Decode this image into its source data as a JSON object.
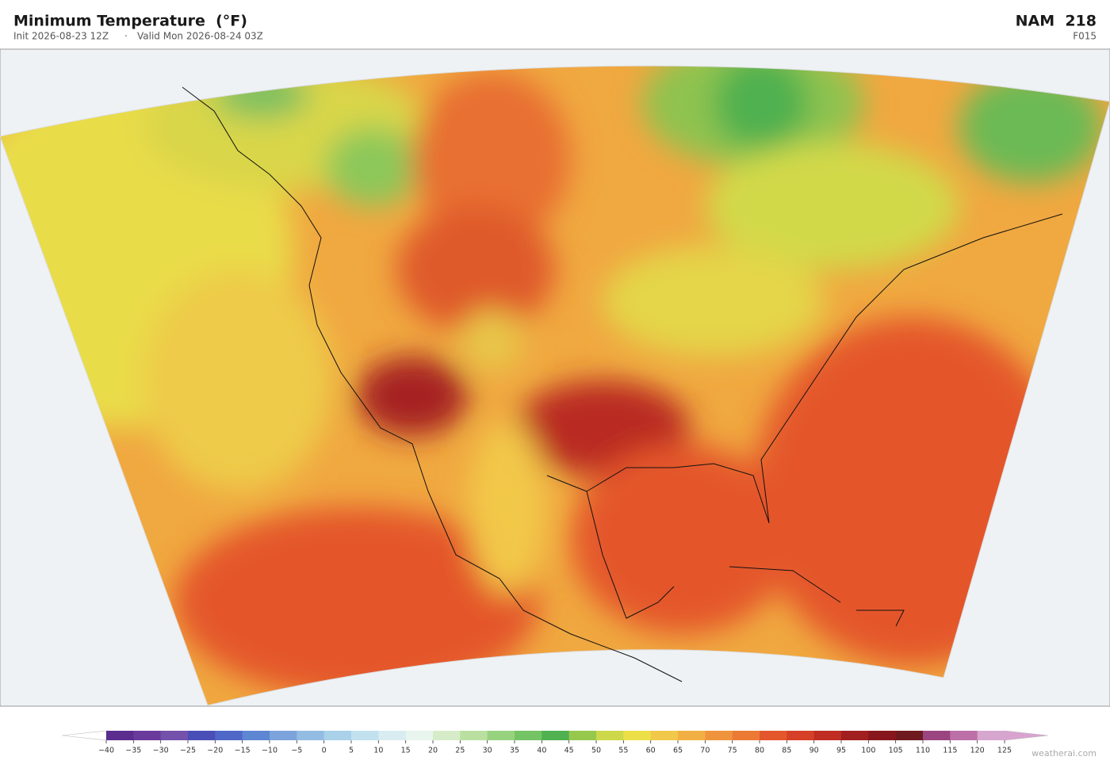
{
  "header": {
    "title": "Minimum Temperature  (°F)",
    "init": "Init 2026-08-23 12Z",
    "valid": "Valid Mon 2026-08-24 03Z",
    "model": "NAM  218",
    "forecast_hour": "F015"
  },
  "colorbar": {
    "ticks": [
      {
        "value": -40,
        "label": "−40"
      },
      {
        "value": -35,
        "label": "−35"
      },
      {
        "value": -30,
        "label": "−30"
      },
      {
        "value": -25,
        "label": "−25"
      },
      {
        "value": -20,
        "label": "−20"
      },
      {
        "value": -15,
        "label": "−15"
      },
      {
        "value": -10,
        "label": "−10"
      },
      {
        "value": -5,
        "label": "−5"
      },
      0,
      5,
      10,
      15,
      20,
      25,
      30,
      35,
      40,
      45,
      50,
      55,
      60,
      65,
      70,
      75,
      80,
      85,
      90,
      95,
      100,
      105,
      110,
      115,
      120,
      125
    ],
    "colors": [
      "#5a2d8e",
      "#6a3a9c",
      "#7451ab",
      "#4a4fb8",
      "#4f68c8",
      "#5d86d3",
      "#7da3dc",
      "#93bce3",
      "#a9d1ea",
      "#c2e1ef",
      "#d8ecf1",
      "#e8f4ee",
      "#d6ecc8",
      "#b9e0a0",
      "#97d27f",
      "#74c465",
      "#4fb14f",
      "#96c84e",
      "#cdd94a",
      "#ecdf48",
      "#f2c84a",
      "#f2b044",
      "#ef943c",
      "#ec7a34",
      "#e4572c",
      "#d63f28",
      "#bf2d23",
      "#a21f1f",
      "#87171c",
      "#6e1a1e",
      "#9b4580",
      "#bd6fa8",
      "#d7a6cf"
    ],
    "under_color": "#ffffff",
    "over_color": "#d9a3d0"
  },
  "watermark": "weatherai.com"
}
